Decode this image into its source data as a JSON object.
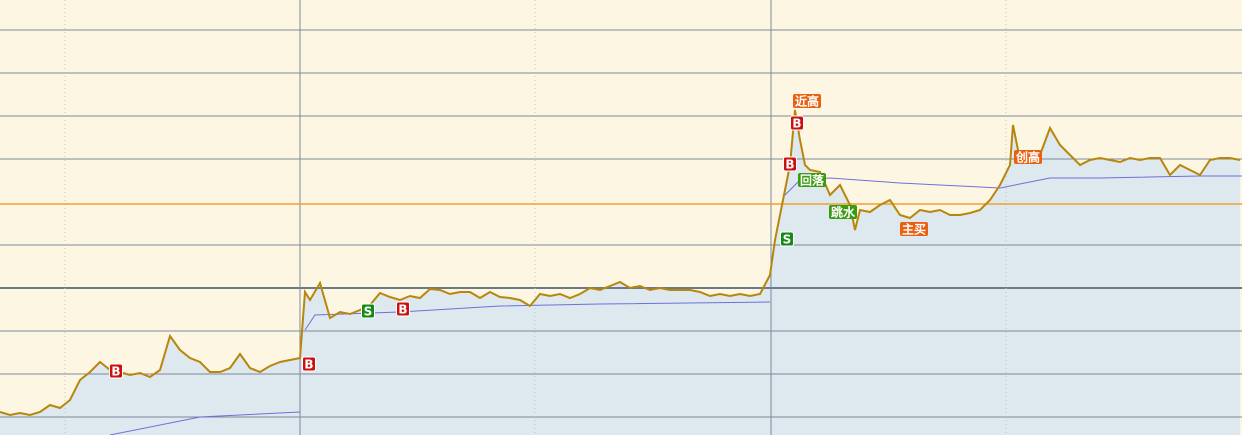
{
  "chart_data": {
    "type": "line",
    "xlim": [
      0,
      124.2
    ],
    "ylim": [
      -18,
      417
    ],
    "gridlines": [
      0,
      43,
      86,
      172,
      258,
      301,
      344,
      387
    ],
    "major_gridline": 129,
    "reference_line": {
      "value": 213,
      "color": "#f0a030"
    },
    "day_separators": [
      30,
      77.1
    ],
    "minor_separators": [
      6.5,
      53.5,
      100.6
    ],
    "grid": true,
    "series": [
      {
        "color": "#b8860b",
        "area": true,
        "x": [
          0,
          1,
          2,
          3,
          4,
          5,
          6,
          7,
          8,
          9,
          10,
          11,
          12,
          13,
          14,
          15,
          16,
          17,
          18,
          19,
          20,
          21,
          22,
          23,
          24,
          25,
          26,
          27,
          28,
          29,
          30,
          30.5,
          31,
          32,
          33,
          34,
          35,
          36,
          37,
          38,
          39,
          40,
          41,
          42,
          43,
          44,
          45,
          46,
          47,
          48,
          49,
          50,
          51,
          52,
          53,
          54,
          55,
          56,
          57,
          58,
          59,
          60,
          61,
          62,
          63,
          64,
          65,
          66,
          67,
          68,
          69,
          70,
          71,
          72,
          73,
          74,
          75,
          76,
          77,
          77.5,
          78,
          78.5,
          79,
          79.5,
          80,
          80.5,
          81,
          82,
          83,
          84,
          85,
          85.5,
          86,
          87,
          88,
          89,
          90,
          91,
          92,
          93,
          94,
          95,
          96,
          97,
          98,
          99,
          100,
          101,
          101.3,
          102,
          103,
          104,
          105,
          106,
          107,
          108,
          109,
          110,
          111,
          112,
          113,
          114,
          115,
          116,
          117,
          118,
          119,
          120,
          121,
          122,
          123,
          124
        ],
        "values": [
          5,
          2,
          4,
          2,
          5,
          12,
          9,
          17,
          37,
          45,
          55,
          47,
          45,
          42,
          44,
          40,
          47,
          81,
          67,
          59,
          55,
          45,
          45,
          49,
          63,
          49,
          45,
          51,
          55,
          57,
          59,
          125,
          117,
          134,
          99,
          105,
          103,
          107,
          112,
          124,
          120,
          117,
          121,
          119,
          128,
          127,
          123,
          125,
          125,
          119,
          125,
          120,
          119,
          117,
          111,
          123,
          121,
          123,
          119,
          123,
          129,
          127,
          131,
          135,
          129,
          131,
          127,
          129,
          127,
          127,
          127,
          125,
          121,
          123,
          121,
          123,
          121,
          123,
          142,
          177,
          202,
          227,
          252,
          307,
          277,
          252,
          247,
          245,
          222,
          232,
          212,
          187,
          207,
          205,
          212,
          217,
          202,
          199,
          207,
          205,
          207,
          202,
          202,
          204,
          207,
          217,
          232,
          252,
          292,
          257,
          262,
          262,
          289,
          272,
          262,
          252,
          257,
          259,
          257,
          255,
          259,
          257,
          259,
          259,
          242,
          252,
          247,
          242,
          257,
          259,
          259,
          257
        ]
      },
      {
        "color": "#7070d8",
        "area": false,
        "x": [
          11,
          20,
          30,
          30.2,
          30.5,
          31.5,
          40,
          50,
          60,
          77,
          77.05,
          78.5,
          80,
          83,
          90,
          100,
          105,
          110,
          120,
          124.2
        ],
        "values": [
          -18,
          0,
          5,
          null,
          87,
          102,
          105,
          111,
          113,
          115,
          null,
          222,
          237,
          239,
          234,
          229,
          239,
          239,
          241,
          241
        ]
      }
    ],
    "annotations": [
      {
        "label": "B",
        "x": 11.6,
        "y": 46,
        "color": "#cc1010"
      },
      {
        "label": "B",
        "x": 30.9,
        "y": 53,
        "color": "#cc1010"
      },
      {
        "label": "S",
        "x": 36.8,
        "y": 106,
        "color": "#138a13"
      },
      {
        "label": "B",
        "x": 40.3,
        "y": 108,
        "color": "#cc1010"
      },
      {
        "label": "S",
        "x": 78.7,
        "y": 178,
        "color": "#138a13"
      },
      {
        "label": "B",
        "x": 79.0,
        "y": 253,
        "color": "#cc1010"
      },
      {
        "label": "B",
        "x": 79.7,
        "y": 294,
        "color": "#cc1010"
      },
      {
        "label": "近高",
        "x": 80.7,
        "y": 316,
        "color": "#e86010",
        "tag": true
      },
      {
        "label": "回落",
        "x": 81.2,
        "y": 237,
        "color": "#3a9a10",
        "tag": true
      },
      {
        "label": "跳水",
        "x": 84.3,
        "y": 205,
        "color": "#3a9a10",
        "tag": true
      },
      {
        "label": "主买",
        "x": 91.4,
        "y": 188,
        "color": "#e86010",
        "tag": true
      },
      {
        "label": "创高",
        "x": 102.8,
        "y": 260,
        "color": "#e86010",
        "tag": true
      }
    ]
  }
}
